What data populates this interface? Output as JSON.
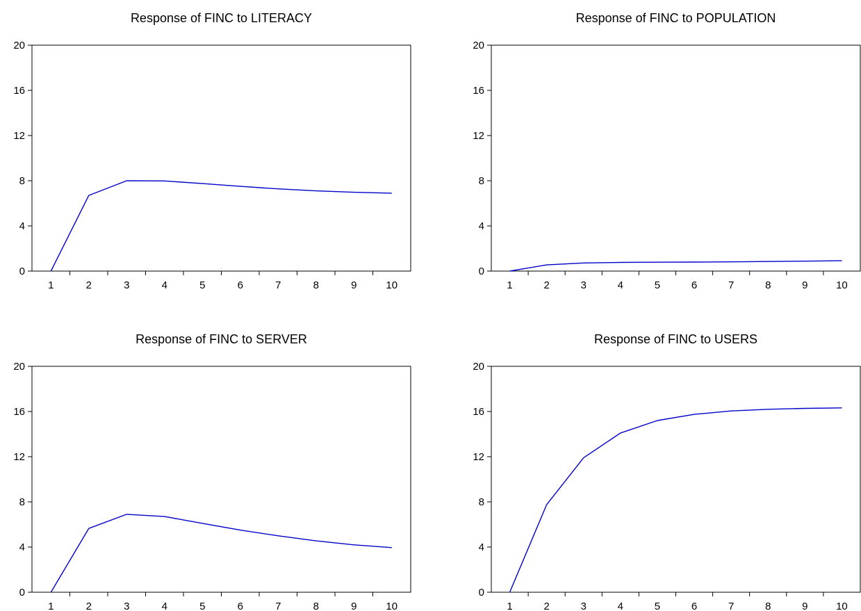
{
  "chart_data": [
    {
      "type": "line",
      "title": "Response of FINC to LITERACY",
      "x": [
        1,
        2,
        3,
        4,
        5,
        6,
        7,
        8,
        9,
        10
      ],
      "series": [
        {
          "values": [
            0,
            6.7,
            8.0,
            7.98,
            7.75,
            7.5,
            7.28,
            7.1,
            6.98,
            6.9
          ]
        }
      ],
      "xlim": [
        0.5,
        10.5
      ],
      "ylim": [
        0,
        20
      ],
      "yticks": [
        0,
        4,
        8,
        12,
        16,
        20
      ],
      "grid": false,
      "color": "#0000cc"
    },
    {
      "type": "line",
      "title": "Response of FINC to POPULATION",
      "x": [
        1,
        2,
        3,
        4,
        5,
        6,
        7,
        8,
        9,
        10
      ],
      "series": [
        {
          "values": [
            0,
            0.55,
            0.72,
            0.77,
            0.79,
            0.8,
            0.82,
            0.85,
            0.88,
            0.92
          ]
        }
      ],
      "xlim": [
        0.5,
        10.5
      ],
      "ylim": [
        0,
        20
      ],
      "yticks": [
        0,
        4,
        8,
        12,
        16,
        20
      ],
      "grid": false,
      "color": "#0000cc"
    },
    {
      "type": "line",
      "title": "Response of FINC to SERVER",
      "x": [
        1,
        2,
        3,
        4,
        5,
        6,
        7,
        8,
        9,
        10
      ],
      "series": [
        {
          "values": [
            0,
            5.65,
            6.9,
            6.7,
            6.1,
            5.5,
            5.0,
            4.55,
            4.2,
            3.95
          ]
        }
      ],
      "xlim": [
        0.5,
        10.5
      ],
      "ylim": [
        0,
        20
      ],
      "yticks": [
        0,
        4,
        8,
        12,
        16,
        20
      ],
      "grid": false,
      "color": "#0000cc"
    },
    {
      "type": "line",
      "title": "Response of FINC to USERS",
      "x": [
        1,
        2,
        3,
        4,
        5,
        6,
        7,
        8,
        9,
        10
      ],
      "series": [
        {
          "values": [
            0,
            7.75,
            11.9,
            14.1,
            15.2,
            15.75,
            16.05,
            16.2,
            16.28,
            16.32
          ]
        }
      ],
      "xlim": [
        0.5,
        10.5
      ],
      "ylim": [
        0,
        20
      ],
      "yticks": [
        0,
        4,
        8,
        12,
        16,
        20
      ],
      "grid": false,
      "color": "#0000cc"
    }
  ]
}
